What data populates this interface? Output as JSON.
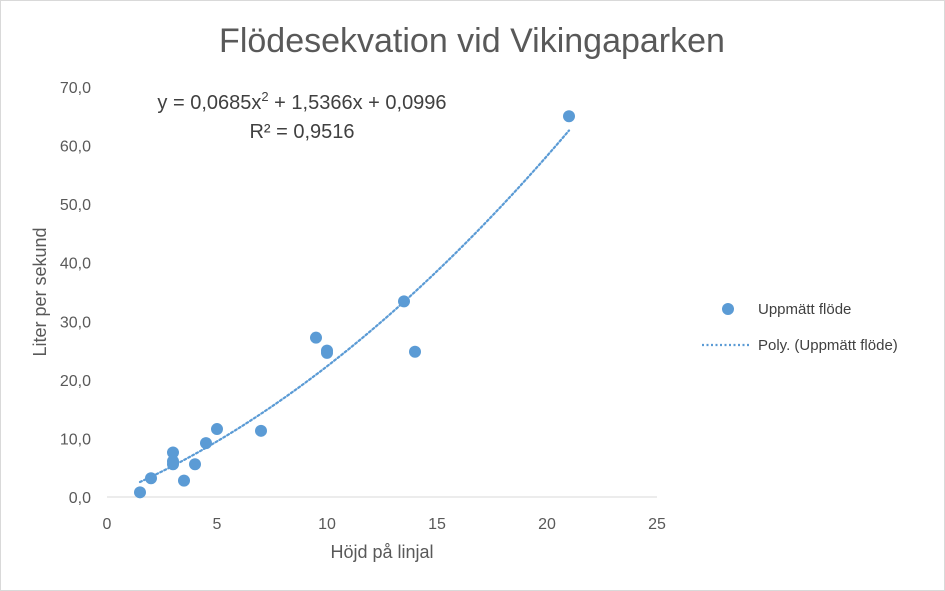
{
  "chart_data": {
    "type": "scatter",
    "title": "Flödesekvation vid Vikingaparken",
    "xlabel": "Höjd på linjal",
    "ylabel": "Liter per sekund",
    "xlim": [
      0,
      25
    ],
    "ylim": [
      0,
      70
    ],
    "x_ticks": [
      0,
      5,
      10,
      15,
      20,
      25
    ],
    "y_ticks": [
      0,
      10,
      20,
      30,
      40,
      50,
      60,
      70
    ],
    "y_tick_labels": [
      "0,0",
      "10,0",
      "20,0",
      "30,0",
      "40,0",
      "50,0",
      "60,0",
      "70,0"
    ],
    "grid": false,
    "legend_position": "right",
    "series": [
      {
        "name": "Uppmätt flöde",
        "kind": "scatter",
        "color": "#5b9bd5",
        "points": [
          [
            1.5,
            0.8
          ],
          [
            2.0,
            3.2
          ],
          [
            3.0,
            7.6
          ],
          [
            3.0,
            6.1
          ],
          [
            3.0,
            5.6
          ],
          [
            3.5,
            2.8
          ],
          [
            4.0,
            5.6
          ],
          [
            4.5,
            9.2
          ],
          [
            5.0,
            11.6
          ],
          [
            7.0,
            11.3
          ],
          [
            9.5,
            27.2
          ],
          [
            10.0,
            25.0
          ],
          [
            10.0,
            24.6
          ],
          [
            13.5,
            33.4
          ],
          [
            14.0,
            24.8
          ],
          [
            21.0,
            65.0
          ]
        ]
      },
      {
        "name": "Poly. (Uppmätt flöde)",
        "kind": "trendline",
        "style": "dotted",
        "color": "#5b9bd5",
        "coefficients": {
          "a": 0.0685,
          "b": 1.5366,
          "c": 0.0996
        },
        "x_range": [
          1.5,
          21.0
        ]
      }
    ],
    "annotations": {
      "equation_prefix": "y = 0,0685x",
      "equation_exp": "2",
      "equation_suffix": " + 1,5366x + 0,0996",
      "r_squared": "R² = 0,9516"
    }
  }
}
